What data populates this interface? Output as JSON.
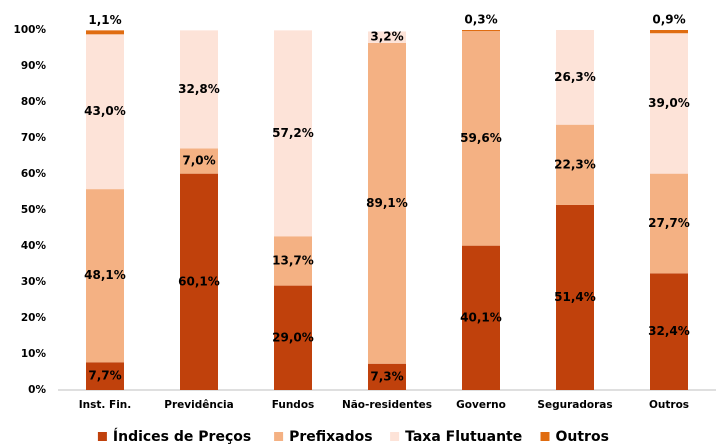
{
  "chart_data": {
    "type": "stacked_bar",
    "categories": [
      "Inst. Fin.",
      "Previdência",
      "Fundos",
      "Não-residentes",
      "Governo",
      "Seguradoras",
      "Outros"
    ],
    "series": [
      {
        "name": "Índices de Preços",
        "color": "#c0410c",
        "values": [
          7.7,
          60.1,
          29.0,
          7.3,
          40.1,
          51.4,
          32.4
        ],
        "value_labels": [
          "7,7%",
          "60,1%",
          "29,0%",
          "7,3%",
          "40,1%",
          "51,4%",
          "32,4%"
        ]
      },
      {
        "name": "Prefixados",
        "color": "#f4b183",
        "values": [
          48.1,
          7.0,
          13.7,
          89.1,
          59.6,
          22.3,
          27.7
        ],
        "value_labels": [
          "48,1%",
          "7,0%",
          "13,7%",
          "89,1%",
          "59,6%",
          "22,3%",
          "27,7%"
        ]
      },
      {
        "name": "Taxa Flutuante",
        "color": "#fde3d8",
        "values": [
          43.0,
          32.8,
          57.2,
          3.2,
          null,
          26.3,
          39.0
        ],
        "value_labels": [
          "43,0%",
          "32,8%",
          "57,2%",
          "3,2%",
          null,
          "26,3%",
          "39,0%"
        ]
      },
      {
        "name": "Outros",
        "color": "#e06c10",
        "values": [
          1.1,
          null,
          null,
          null,
          0.3,
          null,
          0.9
        ],
        "value_labels": [
          "1,1%",
          null,
          null,
          null,
          "0,3%",
          null,
          "0,9%"
        ]
      }
    ],
    "ylim": [
      0,
      100
    ],
    "yticks": [
      {
        "value": 0,
        "label": "0%"
      },
      {
        "value": 10,
        "label": "10%"
      },
      {
        "value": 20,
        "label": "20%"
      },
      {
        "value": 30,
        "label": "30%"
      },
      {
        "value": 40,
        "label": "40%"
      },
      {
        "value": 50,
        "label": "50%"
      },
      {
        "value": 60,
        "label": "60%"
      },
      {
        "value": 70,
        "label": "70%"
      },
      {
        "value": 80,
        "label": "80%"
      },
      {
        "value": 90,
        "label": "90%"
      },
      {
        "value": 100,
        "label": "100%"
      }
    ],
    "legend": "bottom"
  }
}
